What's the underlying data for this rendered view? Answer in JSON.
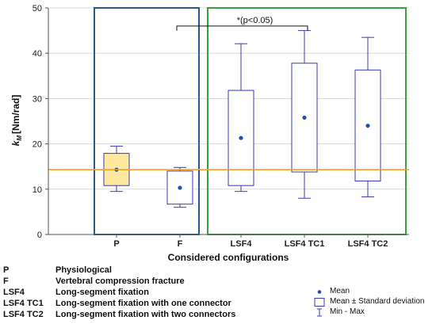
{
  "chart_data": {
    "type": "box",
    "ylabel": "k_M [Nm/rad]",
    "xlabel": "Considered configurations",
    "ylim": [
      0,
      50
    ],
    "yticks": [
      "0",
      "10",
      "20",
      "30",
      "40",
      "50"
    ],
    "categories": [
      "P",
      "F",
      "LSF4",
      "LSF4 TC1",
      "LSF4 TC2"
    ],
    "boxes": [
      {
        "category": "P",
        "min": 9.5,
        "max": 19.5,
        "mean": 14.3,
        "sd_low": 10.8,
        "sd_high": 17.9
      },
      {
        "category": "F",
        "min": 6.0,
        "max": 14.8,
        "mean": 10.3,
        "sd_low": 6.7,
        "sd_high": 14.0
      },
      {
        "category": "LSF4",
        "min": 9.5,
        "max": 42.1,
        "mean": 21.3,
        "sd_low": 10.8,
        "sd_high": 31.8
      },
      {
        "category": "LSF4 TC1",
        "min": 8.0,
        "max": 45.0,
        "mean": 25.8,
        "sd_low": 13.8,
        "sd_high": 37.8
      },
      {
        "category": "LSF4 TC2",
        "min": 8.3,
        "max": 43.5,
        "mean": 24.0,
        "sd_low": 11.8,
        "sd_high": 36.3
      }
    ],
    "reference_line": {
      "value": 14.3,
      "color": "#f0a030"
    },
    "significance": {
      "label": "*(p<0.05)",
      "from": "F",
      "to": "LSF4 TC1",
      "y": 46.0
    },
    "groups": [
      {
        "categories": [
          "P",
          "F"
        ],
        "color": "#2a5a8c"
      },
      {
        "categories": [
          "LSF4",
          "LSF4 TC1",
          "LSF4 TC2"
        ],
        "color": "#3aa040"
      }
    ],
    "highlight": {
      "category": "P",
      "fill": "#fde9a0"
    },
    "colors": {
      "box": "#3b3bb5",
      "mean_dot": "#1f4fb0",
      "grid": "#d9d9d9"
    },
    "grid": true,
    "legend_position": "bottom-right",
    "legend": [
      {
        "symbol": "dot",
        "label": "Mean"
      },
      {
        "symbol": "box",
        "label": "Mean ± Standard deviation"
      },
      {
        "symbol": "whisker",
        "label": "Min - Max"
      }
    ]
  },
  "abbreviations": [
    {
      "code": "P",
      "description": "Physiological"
    },
    {
      "code": "F",
      "description": "Vertebral compression  fracture"
    },
    {
      "code": "LSF4",
      "description": "Long-segment fixation"
    },
    {
      "code": "LSF4 TC1",
      "description": "Long-segment fixation with one connector"
    },
    {
      "code": "LSF4 TC2",
      "description": "Long-segment fixation with two connectors"
    }
  ]
}
